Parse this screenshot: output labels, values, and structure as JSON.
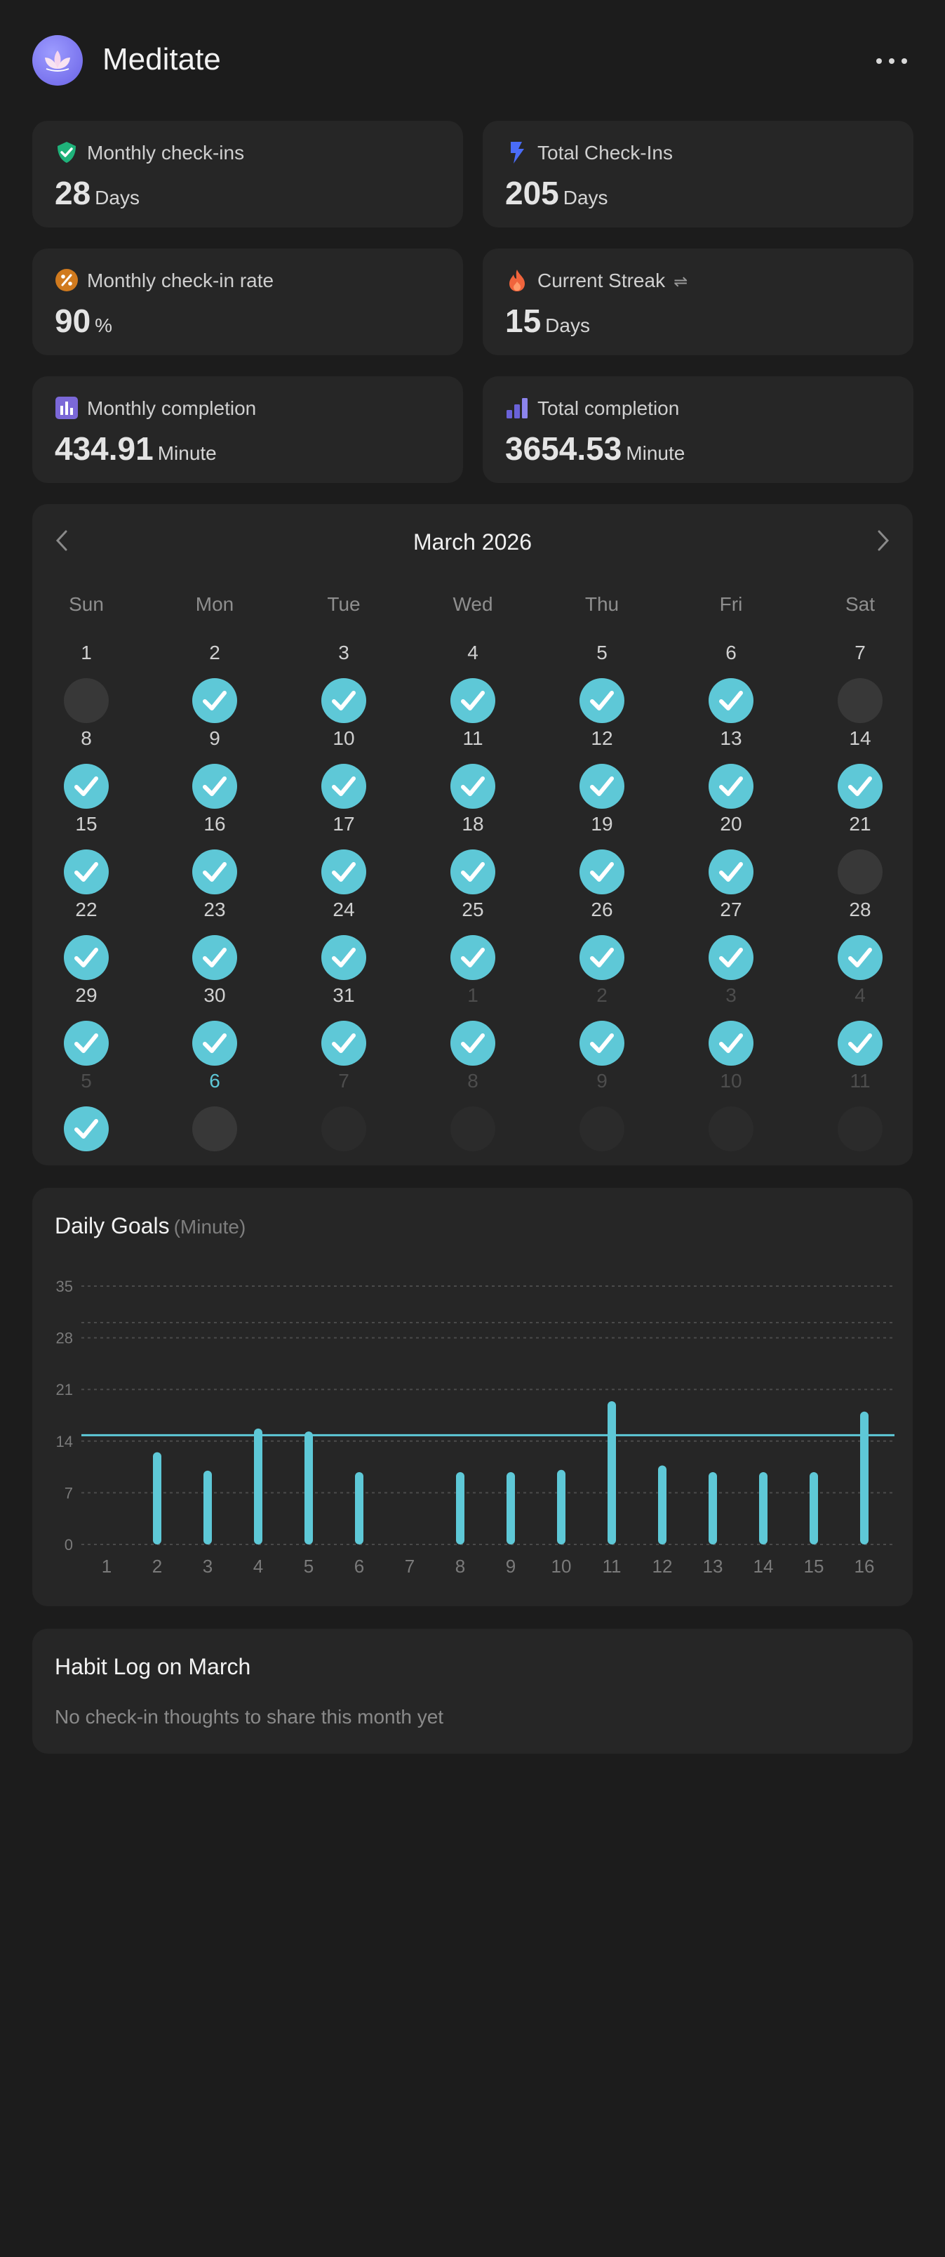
{
  "header": {
    "title": "Meditate",
    "more_icon": "ellipsis-icon",
    "app_icon": "lotus-icon"
  },
  "stats": [
    {
      "label": "Monthly check-ins",
      "value": "28",
      "unit": "Days",
      "icon": "shield-check-icon",
      "color": "#1fb27a"
    },
    {
      "label": "Total Check-Ins",
      "value": "205",
      "unit": "Days",
      "icon": "bolt-icon",
      "color": "#4a6cf7"
    },
    {
      "label": "Monthly check-in rate",
      "value": "90",
      "unit": "%",
      "icon": "percent-icon",
      "color": "#d07a1e"
    },
    {
      "label": "Current Streak",
      "value": "15",
      "unit": "Days",
      "icon": "flame-icon",
      "color": "#f0643c",
      "extra": "⇌"
    },
    {
      "label": "Monthly completion",
      "value": "434.91",
      "unit": "Minute",
      "icon": "bar-chart-icon",
      "color": "#7b68d8"
    },
    {
      "label": "Total completion",
      "value": "3654.53",
      "unit": "Minute",
      "icon": "rising-bars-icon",
      "color": "#6a62d8"
    }
  ],
  "calendar": {
    "title": "March 2026",
    "weekdays": [
      "Sun",
      "Mon",
      "Tue",
      "Wed",
      "Thu",
      "Fri",
      "Sat"
    ],
    "accent": "#5ec8d7",
    "days": [
      {
        "d": "1",
        "s": "miss",
        "m": false
      },
      {
        "d": "2",
        "s": "done",
        "m": false
      },
      {
        "d": "3",
        "s": "done",
        "m": false
      },
      {
        "d": "4",
        "s": "done",
        "m": false
      },
      {
        "d": "5",
        "s": "done",
        "m": false
      },
      {
        "d": "6",
        "s": "done",
        "m": false
      },
      {
        "d": "7",
        "s": "miss",
        "m": false
      },
      {
        "d": "8",
        "s": "done",
        "m": false
      },
      {
        "d": "9",
        "s": "done",
        "m": false
      },
      {
        "d": "10",
        "s": "done",
        "m": false
      },
      {
        "d": "11",
        "s": "done",
        "m": false
      },
      {
        "d": "12",
        "s": "done",
        "m": false
      },
      {
        "d": "13",
        "s": "done",
        "m": false
      },
      {
        "d": "14",
        "s": "done",
        "m": false
      },
      {
        "d": "15",
        "s": "done",
        "m": false
      },
      {
        "d": "16",
        "s": "done",
        "m": false
      },
      {
        "d": "17",
        "s": "done",
        "m": false
      },
      {
        "d": "18",
        "s": "done",
        "m": false
      },
      {
        "d": "19",
        "s": "done",
        "m": false
      },
      {
        "d": "20",
        "s": "done",
        "m": false
      },
      {
        "d": "21",
        "s": "miss",
        "m": false
      },
      {
        "d": "22",
        "s": "done",
        "m": false
      },
      {
        "d": "23",
        "s": "done",
        "m": false
      },
      {
        "d": "24",
        "s": "done",
        "m": false
      },
      {
        "d": "25",
        "s": "done",
        "m": false
      },
      {
        "d": "26",
        "s": "done",
        "m": false
      },
      {
        "d": "27",
        "s": "done",
        "m": false
      },
      {
        "d": "28",
        "s": "done",
        "m": false
      },
      {
        "d": "29",
        "s": "done",
        "m": false
      },
      {
        "d": "30",
        "s": "done",
        "m": false
      },
      {
        "d": "31",
        "s": "done",
        "m": false
      },
      {
        "d": "1",
        "s": "done",
        "m": true
      },
      {
        "d": "2",
        "s": "done",
        "m": true
      },
      {
        "d": "3",
        "s": "done",
        "m": true
      },
      {
        "d": "4",
        "s": "done",
        "m": true
      },
      {
        "d": "5",
        "s": "done",
        "m": true
      },
      {
        "d": "6",
        "s": "today",
        "m": false
      },
      {
        "d": "7",
        "s": "future",
        "m": true
      },
      {
        "d": "8",
        "s": "future",
        "m": true
      },
      {
        "d": "9",
        "s": "future",
        "m": true
      },
      {
        "d": "10",
        "s": "future",
        "m": true
      },
      {
        "d": "11",
        "s": "future",
        "m": true
      }
    ]
  },
  "goals": {
    "title": "Daily Goals",
    "unit": "(Minute)"
  },
  "chart_data": {
    "type": "bar",
    "categories": [
      "1",
      "2",
      "3",
      "4",
      "5",
      "6",
      "7",
      "8",
      "9",
      "10",
      "11",
      "12",
      "13",
      "14",
      "15",
      "16"
    ],
    "values": [
      0,
      12.5,
      10,
      15.7,
      15.3,
      9.8,
      0,
      9.8,
      9.8,
      10.1,
      19.4,
      10.7,
      9.8,
      9.8,
      9.8,
      18
    ]
  },
  "chart_style": {
    "ylim": [
      0,
      35
    ],
    "yticks": [
      0,
      7,
      14,
      21,
      28,
      35
    ],
    "goal_line": 14.8,
    "bar_color": "#5ec8d7",
    "grid": true
  },
  "log": {
    "title": "Habit Log on March",
    "empty_text": "No check-in thoughts to share this month yet"
  }
}
